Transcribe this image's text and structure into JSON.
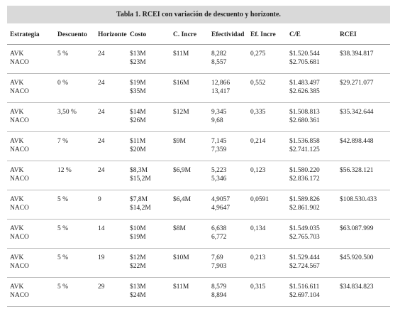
{
  "table": {
    "title": "Tabla 1. RCEI con variación de descuento y horizonte.",
    "headers": [
      "Estrategia",
      "Descuento",
      "Horizonte",
      "Costo",
      "C. Incre",
      "Efectividad",
      "Ef. Incre",
      "C/E",
      "RCEI"
    ],
    "rows": [
      [
        [
          "AVK",
          "NACO"
        ],
        [
          "5 %"
        ],
        [
          "24"
        ],
        [
          "$13M",
          "$23M"
        ],
        [
          "$11M"
        ],
        [
          "8,282",
          "8,557"
        ],
        [
          "0,275"
        ],
        [
          "$1.520.544",
          "$2.705.681"
        ],
        [
          "$38.394.817"
        ]
      ],
      [
        [
          "AVK",
          "NACO"
        ],
        [
          "0 %"
        ],
        [
          "24"
        ],
        [
          "$19M",
          "$35M"
        ],
        [
          "$16M"
        ],
        [
          "12,866",
          "13,417"
        ],
        [
          "0,552"
        ],
        [
          "$1.483.497",
          "$2.626.385"
        ],
        [
          "$29.271.077"
        ]
      ],
      [
        [
          "AVK",
          "NACO"
        ],
        [
          "3,50 %"
        ],
        [
          "24"
        ],
        [
          "$14M",
          "$26M"
        ],
        [
          "$12M"
        ],
        [
          "9,345",
          "9,68"
        ],
        [
          "0,335"
        ],
        [
          "$1.508.813",
          "$2.680.361"
        ],
        [
          "$35.342.644"
        ]
      ],
      [
        [
          "AVK",
          "NACO"
        ],
        [
          "7 %"
        ],
        [
          "24"
        ],
        [
          "$11M",
          "$20M"
        ],
        [
          "$9M"
        ],
        [
          "7,145",
          "7,359"
        ],
        [
          "0,214"
        ],
        [
          "$1.536.858",
          "$2.741.125"
        ],
        [
          "$42.898.448"
        ]
      ],
      [
        [
          "AVK",
          "NACO"
        ],
        [
          "12 %"
        ],
        [
          "24"
        ],
        [
          "$8,3M",
          "$15,2M"
        ],
        [
          "$6,9M"
        ],
        [
          "5,223",
          "5,346"
        ],
        [
          "0,123"
        ],
        [
          "$1.580.220",
          "$2.836.172"
        ],
        [
          "$56.328.121"
        ]
      ],
      [
        [
          "AVK",
          "NACO"
        ],
        [
          "5 %"
        ],
        [
          "9"
        ],
        [
          "$7,8M",
          "$14,2M"
        ],
        [
          "$6,4M"
        ],
        [
          "4,9057",
          "4,9647"
        ],
        [
          "0,0591"
        ],
        [
          "$1.589.826",
          "$2.861.902"
        ],
        [
          "$108.530.433"
        ]
      ],
      [
        [
          "AVK",
          "NACO"
        ],
        [
          "5 %"
        ],
        [
          "14"
        ],
        [
          "$10M",
          "$19M"
        ],
        [
          "$8M"
        ],
        [
          "6,638",
          "6,772"
        ],
        [
          "0,134"
        ],
        [
          "$1.549.035",
          "$2.765.703"
        ],
        [
          "$63.087.999"
        ]
      ],
      [
        [
          "AVK",
          "NACO"
        ],
        [
          "5 %"
        ],
        [
          "19"
        ],
        [
          "$12M",
          "$22M"
        ],
        [
          "$10M"
        ],
        [
          "7,69",
          "7,903"
        ],
        [
          "0,213"
        ],
        [
          "$1.529.444",
          "$2.724.567"
        ],
        [
          "$45.920.500"
        ]
      ],
      [
        [
          "AVK",
          "NACO"
        ],
        [
          "5 %"
        ],
        [
          "29"
        ],
        [
          "$13M",
          "$24M"
        ],
        [
          "$11M"
        ],
        [
          "8,579",
          "8,894"
        ],
        [
          "0,315"
        ],
        [
          "$1.516.611",
          "$2.697.104"
        ],
        [
          "$34.834.823"
        ]
      ]
    ]
  }
}
